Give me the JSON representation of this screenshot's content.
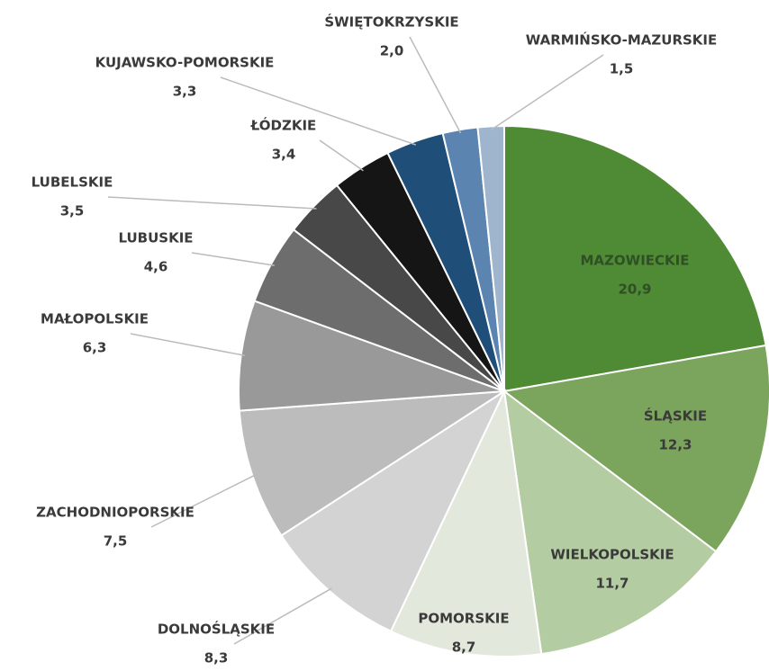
{
  "chart_data": {
    "type": "pie",
    "categories": [
      "MAZOWIECKIE",
      "ŚLĄSKIE",
      "WIELKOPOLSKIE",
      "POMORSKIE",
      "DOLNOŚLĄSKIE",
      "ZACHODNIOPORSKIE",
      "MAŁOPOLSKIE",
      "LUBUSKIE",
      "LUBELSKIE",
      "ŁÓDZKIE",
      "KUJAWSKO-POMORSKIE",
      "ŚWIĘTOKRZYSKIE",
      "WARMIŃSKO-MAZURSKIE"
    ],
    "values": [
      20.9,
      12.3,
      11.7,
      8.7,
      8.3,
      7.5,
      6.3,
      4.6,
      3.5,
      3.4,
      3.3,
      2.0,
      1.5
    ],
    "value_labels": [
      "20,9",
      "12,3",
      "11,7",
      "8,7",
      "8,3",
      "7,5",
      "6,3",
      "4,6",
      "3,5",
      "3,4",
      "3,3",
      "2,0",
      "1,5"
    ],
    "colors": [
      "#4f8a35",
      "#7ba45d",
      "#b4cca1",
      "#e3e8dd",
      "#d3d3d3",
      "#bcbcbc",
      "#999999",
      "#6d6d6d",
      "#484848",
      "#151515",
      "#1f4e79",
      "#5b84b1",
      "#9fb5cd"
    ]
  }
}
